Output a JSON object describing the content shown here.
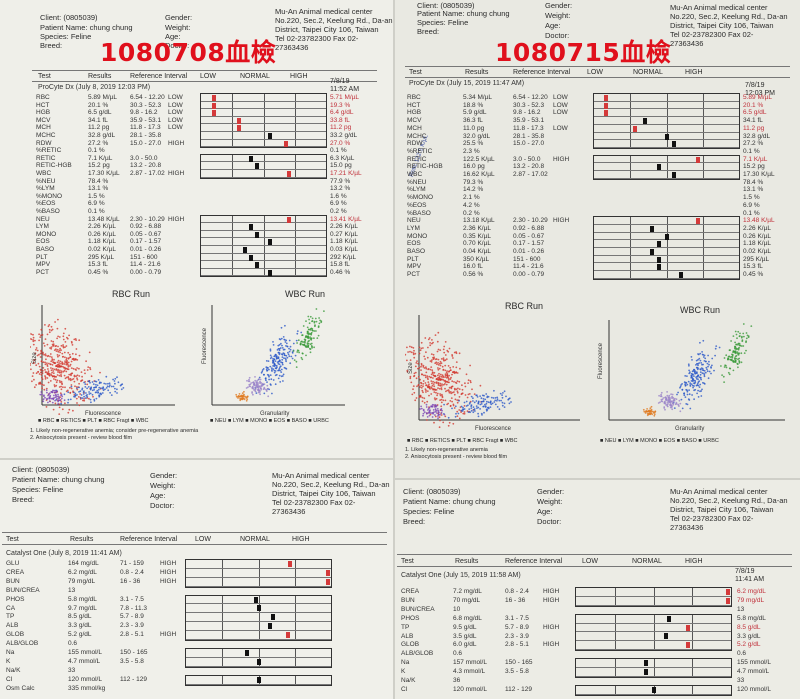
{
  "quad1": {
    "client": "Client: (0805039)",
    "patient": "Patient Name: chung chung",
    "species": "Species: Feline",
    "breed": "Breed:",
    "gender": "Gender:",
    "weight": "Weight:",
    "age": "Age:",
    "doctor": "Doctor:",
    "clinic": [
      "Mu-An Animal medical center",
      "No.220, Sec.2, Keelung Rd., Da-an",
      "District, Taipei City 106, Taiwan",
      "Tel 02-23782300 Fax 02-",
      "27363436"
    ],
    "overlay": "1080708血檢",
    "cols": [
      "Test",
      "Results",
      "Reference Interval",
      "LOW",
      "NORMAL",
      "HIGH"
    ],
    "section": "ProCyte Dx (July 8, 2019 12:03 PM)",
    "date": [
      "7/8/19",
      "11:52 AM"
    ],
    "rows": [
      {
        "t": "RBC",
        "r": "5.89 M/µL",
        "ref": "6.54 - 12.20",
        "f": "LOW",
        "v": "5.71 M/µL",
        "red": true,
        "m": 0.1
      },
      {
        "t": "HCT",
        "r": "20.1 %",
        "ref": "30.3 - 52.3",
        "f": "LOW",
        "v": "19.3 %",
        "red": true,
        "m": 0.1
      },
      {
        "t": "HGB",
        "r": "6.5 g/dL",
        "ref": "9.8 - 16.2",
        "f": "LOW",
        "v": "6.4 g/dL",
        "red": true,
        "m": 0.1
      },
      {
        "t": "MCV",
        "r": "34.1 fL",
        "ref": "35.9 - 53.1",
        "f": "LOW",
        "v": "33.8 fL",
        "red": true,
        "m": 0.3
      },
      {
        "t": "MCH",
        "r": "11.2 pg",
        "ref": "11.8 - 17.3",
        "f": "LOW",
        "v": "11.2 pg",
        "red": true,
        "m": 0.3
      },
      {
        "t": "MCHC",
        "r": "32.8 g/dL",
        "ref": "28.1 - 35.8",
        "f": "",
        "v": "33.2 g/dL",
        "red": false,
        "m": 0.55
      },
      {
        "t": "RDW",
        "r": "27.2 %",
        "ref": "15.0 - 27.0",
        "f": "HIGH",
        "v": "27.0 %",
        "red": true,
        "m": 0.68
      },
      {
        "t": "%RETIC",
        "r": "0.1 %",
        "ref": "",
        "f": "",
        "v": "0.1 %",
        "red": false,
        "m": -1
      },
      {
        "t": "RETIC",
        "r": "7.1 K/µL",
        "ref": "3.0 - 50.0",
        "f": "",
        "v": "6.3 K/µL",
        "red": false,
        "m": 0.4
      },
      {
        "t": "RETIC-HGB",
        "r": "15.2 pg",
        "ref": "13.2 - 20.8",
        "f": "",
        "v": "15.0 pg",
        "red": false,
        "m": 0.45
      },
      {
        "t": "WBC",
        "r": "17.30 K/µL",
        "ref": "2.87 - 17.02",
        "f": "HIGH",
        "v": "17.21 K/µL",
        "red": true,
        "m": 0.7
      },
      {
        "t": "%NEU",
        "r": "78.4 %",
        "ref": "",
        "f": "",
        "v": "77.9 %",
        "red": false,
        "m": -1
      },
      {
        "t": "%LYM",
        "r": "13.1 %",
        "ref": "",
        "f": "",
        "v": "13.2 %",
        "red": false,
        "m": -1
      },
      {
        "t": "%MONO",
        "r": "1.5 %",
        "ref": "",
        "f": "",
        "v": "1.6 %",
        "red": false,
        "m": -1
      },
      {
        "t": "%EOS",
        "r": "6.9 %",
        "ref": "",
        "f": "",
        "v": "6.9 %",
        "red": false,
        "m": -1
      },
      {
        "t": "%BASO",
        "r": "0.1 %",
        "ref": "",
        "f": "",
        "v": "0.2 %",
        "red": false,
        "m": -1
      },
      {
        "t": "NEU",
        "r": "13.48 K/µL",
        "ref": "2.30 - 10.29",
        "f": "HIGH",
        "v": "13.41 K/µL",
        "red": true,
        "m": 0.7
      },
      {
        "t": "LYM",
        "r": "2.26 K/µL",
        "ref": "0.92 - 6.88",
        "f": "",
        "v": "2.26 K/µL",
        "red": false,
        "m": 0.4
      },
      {
        "t": "MONO",
        "r": "0.26 K/µL",
        "ref": "0.05 - 0.67",
        "f": "",
        "v": "0.27 K/µL",
        "red": false,
        "m": 0.45
      },
      {
        "t": "EOS",
        "r": "1.18 K/µL",
        "ref": "0.17 - 1.57",
        "f": "",
        "v": "1.18 K/µL",
        "red": false,
        "m": 0.55
      },
      {
        "t": "BASO",
        "r": "0.02 K/µL",
        "ref": "0.01 - 0.26",
        "f": "",
        "v": "0.03 K/µL",
        "red": false,
        "m": 0.35
      },
      {
        "t": "PLT",
        "r": "295 K/µL",
        "ref": "151 - 600",
        "f": "",
        "v": "292 K/µL",
        "red": false,
        "m": 0.4
      },
      {
        "t": "MPV",
        "r": "15.3 fL",
        "ref": "11.4 - 21.6",
        "f": "",
        "v": "15.8 fL",
        "red": false,
        "m": 0.45
      },
      {
        "t": "PCT",
        "r": "0.45 %",
        "ref": "0.00 - 0.79",
        "f": "",
        "v": "0.46 %",
        "red": false,
        "m": 0.55
      }
    ],
    "rbc_title": "RBC Run",
    "wbc_title": "WBC Run",
    "size_label": "Size",
    "fluor_label": "Fluorescence",
    "fluor_label_y": "Fluorescence",
    "gran_label": "Granularity",
    "rbc_legend": "■ RBC ■ RETICS ■ PLT ■ RBC Fragt ■ WBC",
    "wbc_legend": "■ NEU ■ LYM ■ MONO ■ EOS ■ BASO ■ URBC",
    "note1": "1. Likely non-regenerative anemia; consider pre-regenerative anemia",
    "note2": "2. Anisocytosis present - review blood film"
  },
  "quad2": {
    "client": "Client: (0805039)",
    "patient": "Patient Name: chung chung",
    "species": "Species: Feline",
    "breed": "Breed:",
    "gender": "Gender:",
    "weight": "Weight:",
    "age": "Age:",
    "doctor": "Doctor:",
    "clinic": [
      "Mu-An Animal medical center",
      "No.220, Sec.2, Keelung Rd., Da-an",
      "District, Taipei City 106, Taiwan",
      "Tel 02-23782300 Fax 02-",
      "27363436"
    ],
    "overlay": "1080715血檢",
    "cols": [
      "Test",
      "Results",
      "Reference Interval",
      "LOW",
      "NORMAL",
      "HIGH"
    ],
    "section": "ProCyte Dx (July 15, 2019 11:47 AM)",
    "date": [
      "7/8/19",
      "12:03 PM"
    ],
    "rows": [
      {
        "t": "RBC",
        "r": "5.34 M/µL",
        "ref": "6.54 - 12.20",
        "f": "LOW",
        "v": "5.89 M/µL",
        "red": true,
        "m": 0.08
      },
      {
        "t": "HCT",
        "r": "18.8 %",
        "ref": "30.3 - 52.3",
        "f": "LOW",
        "v": "20.1 %",
        "red": true,
        "m": 0.08
      },
      {
        "t": "HGB",
        "r": "5.9 g/dL",
        "ref": "9.8 - 16.2",
        "f": "LOW",
        "v": "6.5 g/dL",
        "red": true,
        "m": 0.08
      },
      {
        "t": "MCV",
        "r": "36.3 fL",
        "ref": "35.9 - 53.1",
        "f": "",
        "v": "34.1 fL",
        "red": false,
        "m": 0.35
      },
      {
        "t": "MCH",
        "r": "11.0 pg",
        "ref": "11.8 - 17.3",
        "f": "LOW",
        "v": "11.2 pg",
        "red": true,
        "m": 0.28
      },
      {
        "t": "MCHC",
        "r": "32.0 g/dL",
        "ref": "28.1 - 35.8",
        "f": "",
        "v": "32.8 g/dL",
        "red": false,
        "m": 0.5
      },
      {
        "t": "RDW",
        "r": "25.5 %",
        "ref": "15.0 - 27.0",
        "f": "",
        "v": "27.2 %",
        "red": false,
        "m": 0.55
      },
      {
        "t": "%RETIC",
        "r": "2.3 %",
        "ref": "",
        "f": "",
        "v": "0.1 %",
        "red": false,
        "m": -1
      },
      {
        "t": "RETIC",
        "r": "122.5 K/µL",
        "ref": "3.0 - 50.0",
        "f": "HIGH",
        "v": "7.1 K/µL",
        "red": true,
        "m": 0.72
      },
      {
        "t": "RETIC-HGB",
        "r": "16.0 pg",
        "ref": "13.2 - 20.8",
        "f": "",
        "v": "15.2 pg",
        "red": false,
        "m": 0.45
      },
      {
        "t": "WBC",
        "r": "16.62 K/µL",
        "ref": "2.87 - 17.02",
        "f": "",
        "v": "17.30 K/µL",
        "red": false,
        "m": 0.55
      },
      {
        "t": "%NEU",
        "r": "79.3 %",
        "ref": "",
        "f": "",
        "v": "78.4 %",
        "red": false,
        "m": -1
      },
      {
        "t": "%LYM",
        "r": "14.2 %",
        "ref": "",
        "f": "",
        "v": "13.1 %",
        "red": false,
        "m": -1
      },
      {
        "t": "%MONO",
        "r": "2.1 %",
        "ref": "",
        "f": "",
        "v": "1.5 %",
        "red": false,
        "m": -1
      },
      {
        "t": "%EOS",
        "r": "4.2 %",
        "ref": "",
        "f": "",
        "v": "6.9 %",
        "red": false,
        "m": -1
      },
      {
        "t": "%BASO",
        "r": "0.2 %",
        "ref": "",
        "f": "",
        "v": "0.1 %",
        "red": false,
        "m": -1
      },
      {
        "t": "NEU",
        "r": "13.18 K/µL",
        "ref": "2.30 - 10.29",
        "f": "HIGH",
        "v": "13.48 K/µL",
        "red": true,
        "m": 0.72
      },
      {
        "t": "LYM",
        "r": "2.36 K/µL",
        "ref": "0.92 - 6.88",
        "f": "",
        "v": "2.26 K/µL",
        "red": false,
        "m": 0.4
      },
      {
        "t": "MONO",
        "r": "0.35 K/µL",
        "ref": "0.05 - 0.67",
        "f": "",
        "v": "0.26 K/µL",
        "red": false,
        "m": 0.5
      },
      {
        "t": "EOS",
        "r": "0.70 K/µL",
        "ref": "0.17 - 1.57",
        "f": "",
        "v": "1.18 K/µL",
        "red": false,
        "m": 0.45
      },
      {
        "t": "BASO",
        "r": "0.04 K/µL",
        "ref": "0.01 - 0.26",
        "f": "",
        "v": "0.02 K/µL",
        "red": false,
        "m": 0.4
      },
      {
        "t": "PLT",
        "r": "350 K/µL",
        "ref": "151 - 600",
        "f": "",
        "v": "295 K/µL",
        "red": false,
        "m": 0.45
      },
      {
        "t": "MPV",
        "r": "16.0 fL",
        "ref": "11.4 - 21.6",
        "f": "",
        "v": "15.3 fL",
        "red": false,
        "m": 0.45
      },
      {
        "t": "PCT",
        "r": "0.56 %",
        "ref": "0.00 - 0.79",
        "f": "",
        "v": "0.45 %",
        "red": false,
        "m": 0.6
      }
    ],
    "rbc_title": "RBC Run",
    "wbc_title": "WBC Run",
    "size_label": "Size",
    "fluor_label": "Fluorescence",
    "fluor_label_y": "Fluorescence",
    "gran_label": "Granularity",
    "rbc_legend": "■ RBC ■ RETICS ■ PLT ■ RBC Fragt ■ WBC",
    "wbc_legend": "■ NEU ■ LYM ■ MONO ■ EOS ■ BASO ■ URBC",
    "note1": "1. Likely non-regenerative anemia",
    "note2": "2. Anisocytosis present - review blood film",
    "handwritten": "Retic 122.5 K/µL"
  },
  "quad3": {
    "client": "Client: (0805039)",
    "patient": "Patient Name: chung chung",
    "species": "Species: Feline",
    "breed": "Breed:",
    "gender": "Gender:",
    "weight": "Weight:",
    "age": "Age:",
    "doctor": "Doctor:",
    "clinic": [
      "Mu-An Animal medical center",
      "No.220, Sec.2, Keelung Rd., Da-an",
      "District, Taipei City 106, Taiwan",
      "Tel 02-23782300 Fax 02-",
      "27363436"
    ],
    "cols": [
      "Test",
      "Results",
      "Reference Interval",
      "LOW",
      "NORMAL",
      "HIGH"
    ],
    "section": "Catalyst One (July 8, 2019 11:41 AM)",
    "rows": [
      {
        "t": "GLU",
        "r": "164 mg/dL",
        "ref": "71 - 159",
        "f": "HIGH",
        "red": true,
        "m": 0.72
      },
      {
        "t": "CREA",
        "r": "6.2 mg/dL",
        "ref": "0.8 - 2.4",
        "f": "HIGH",
        "red": true,
        "m": 0.98
      },
      {
        "t": "BUN",
        "r": "79 mg/dL",
        "ref": "16 - 36",
        "f": "HIGH",
        "red": true,
        "m": 0.98
      },
      {
        "t": "BUN/CREA",
        "r": "13",
        "ref": "",
        "f": "",
        "red": false,
        "m": -1
      },
      {
        "t": "PHOS",
        "r": "5.8 mg/dL",
        "ref": "3.1 - 7.5",
        "f": "",
        "red": false,
        "m": 0.48
      },
      {
        "t": "CA",
        "r": "9.7 mg/dL",
        "ref": "7.8 - 11.3",
        "f": "",
        "red": false,
        "m": 0.5
      },
      {
        "t": "TP",
        "r": "8.5 g/dL",
        "ref": "5.7 - 8.9",
        "f": "",
        "red": false,
        "m": 0.6
      },
      {
        "t": "ALB",
        "r": "3.3 g/dL",
        "ref": "2.3 - 3.9",
        "f": "",
        "red": false,
        "m": 0.58
      },
      {
        "t": "GLOB",
        "r": "5.2 g/dL",
        "ref": "2.8 - 5.1",
        "f": "HIGH",
        "red": true,
        "m": 0.7
      },
      {
        "t": "ALB/GLOB",
        "r": "0.6",
        "ref": "",
        "f": "",
        "red": false,
        "m": -1
      },
      {
        "t": "Na",
        "r": "155 mmol/L",
        "ref": "150 - 165",
        "f": "",
        "red": false,
        "m": 0.42
      },
      {
        "t": "K",
        "r": "4.7 mmol/L",
        "ref": "3.5 - 5.8",
        "f": "",
        "red": false,
        "m": 0.5
      },
      {
        "t": "Na/K",
        "r": "33",
        "ref": "",
        "f": "",
        "red": false,
        "m": -1
      },
      {
        "t": "Cl",
        "r": "120 mmol/L",
        "ref": "112 - 129",
        "f": "",
        "red": false,
        "m": 0.5
      },
      {
        "t": "Osm Calc",
        "r": "335 mmol/kg",
        "ref": "",
        "f": "",
        "red": false,
        "m": -1
      }
    ]
  },
  "quad4": {
    "client": "Client: (0805039)",
    "patient": "Patient Name: chung chung",
    "species": "Species: Feline",
    "breed": "Breed:",
    "gender": "Gender:",
    "weight": "Weight:",
    "age": "Age:",
    "doctor": "Doctor:",
    "clinic": [
      "Mu-An Animal medical center",
      "No.220, Sec.2, Keelung Rd., Da-an",
      "District, Taipei City 106, Taiwan",
      "Tel 02-23782300 Fax 02-",
      "27363436"
    ],
    "cols": [
      "Test",
      "Results",
      "Reference Interval",
      "LOW",
      "NORMAL",
      "HIGH"
    ],
    "section": "Catalyst One (July 15, 2019 11:58 AM)",
    "date": [
      "7/8/19",
      "11:41 AM"
    ],
    "rows": [
      {
        "t": "CREA",
        "r": "7.2 mg/dL",
        "ref": "0.8 - 2.4",
        "f": "HIGH",
        "v": "6.2 mg/dL",
        "red": true,
        "m": 0.98
      },
      {
        "t": "BUN",
        "r": "70 mg/dL",
        "ref": "16 - 36",
        "f": "HIGH",
        "v": "79 mg/dL",
        "red": true,
        "m": 0.98
      },
      {
        "t": "BUN/CREA",
        "r": "10",
        "ref": "",
        "f": "",
        "v": "13",
        "red": false,
        "m": -1
      },
      {
        "t": "PHOS",
        "r": "6.8 mg/dL",
        "ref": "3.1 - 7.5",
        "f": "",
        "v": "5.8 mg/dL",
        "red": false,
        "m": 0.6
      },
      {
        "t": "TP",
        "r": "9.5 g/dL",
        "ref": "5.7 - 8.9",
        "f": "HIGH",
        "v": "8.5 g/dL",
        "red": true,
        "m": 0.72
      },
      {
        "t": "ALB",
        "r": "3.5 g/dL",
        "ref": "2.3 - 3.9",
        "f": "",
        "v": "3.3 g/dL",
        "red": false,
        "m": 0.58
      },
      {
        "t": "GLOB",
        "r": "6.0 g/dL",
        "ref": "2.8 - 5.1",
        "f": "HIGH",
        "v": "5.2 g/dL",
        "red": true,
        "m": 0.72
      },
      {
        "t": "ALB/GLOB",
        "r": "0.6",
        "ref": "",
        "f": "",
        "v": "0.6",
        "red": false,
        "m": -1
      },
      {
        "t": "Na",
        "r": "157 mmol/L",
        "ref": "150 - 165",
        "f": "",
        "v": "155 mmol/L",
        "red": false,
        "m": 0.45
      },
      {
        "t": "K",
        "r": "4.3 mmol/L",
        "ref": "3.5 - 5.8",
        "f": "",
        "v": "4.7 mmol/L",
        "red": false,
        "m": 0.45
      },
      {
        "t": "Na/K",
        "r": "36",
        "ref": "",
        "f": "",
        "v": "33",
        "red": false,
        "m": -1
      },
      {
        "t": "Cl",
        "r": "120 mmol/L",
        "ref": "112 - 129",
        "f": "",
        "v": "120 mmol/L",
        "red": false,
        "m": 0.5
      }
    ]
  }
}
